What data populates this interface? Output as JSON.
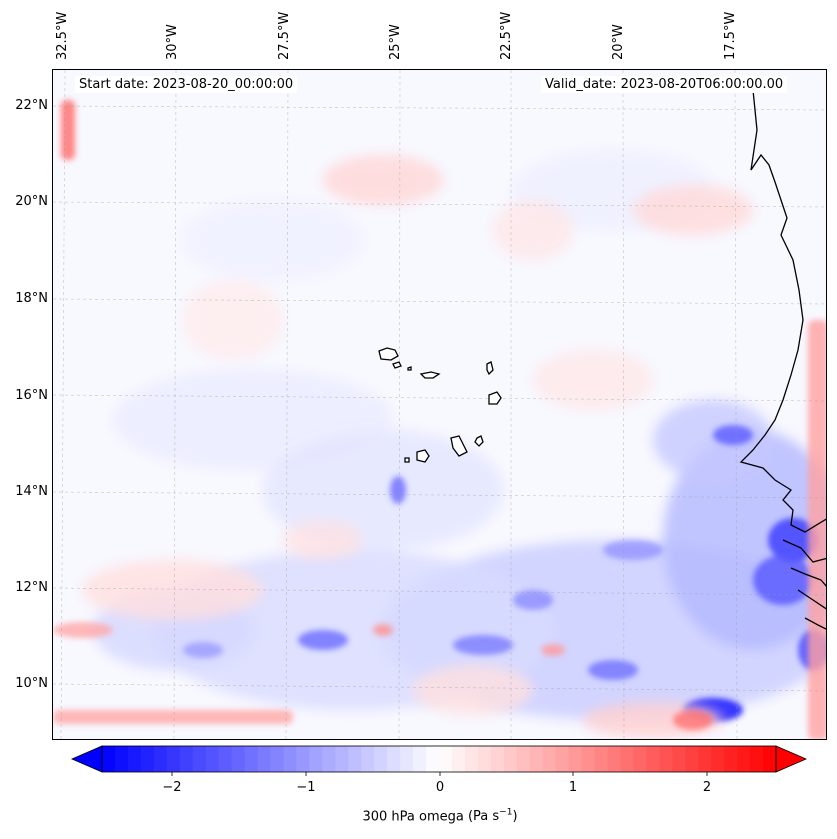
{
  "header": {
    "start_date": "Start date: 2023-08-20_00:00:00",
    "valid_date": "Valid_date: 2023-08-20T06:00:00.00"
  },
  "axes": {
    "longitude_labels": [
      "32.5°W",
      "30°W",
      "27.5°W",
      "25°W",
      "22.5°W",
      "20°W",
      "17.5°W"
    ],
    "latitude_labels": [
      "22°N",
      "20°N",
      "18°N",
      "16°N",
      "14°N",
      "12°N",
      "10°N"
    ]
  },
  "colorbar": {
    "variable": "300 hPa omega",
    "units_base": "(Pa s",
    "units_exp": "−1",
    "units_close": ")",
    "ticks": [
      "−2",
      "−1",
      "0",
      "1",
      "2"
    ],
    "range": [
      -2.6,
      2.6
    ],
    "colors": {
      "negative": "#0000ff",
      "zero": "#ffffff",
      "positive": "#ff0000"
    }
  },
  "map": {
    "coastline_color": "#000000",
    "gridline_color": "#999999",
    "features": [
      "West African coastline",
      "Cape Verde islands"
    ]
  }
}
